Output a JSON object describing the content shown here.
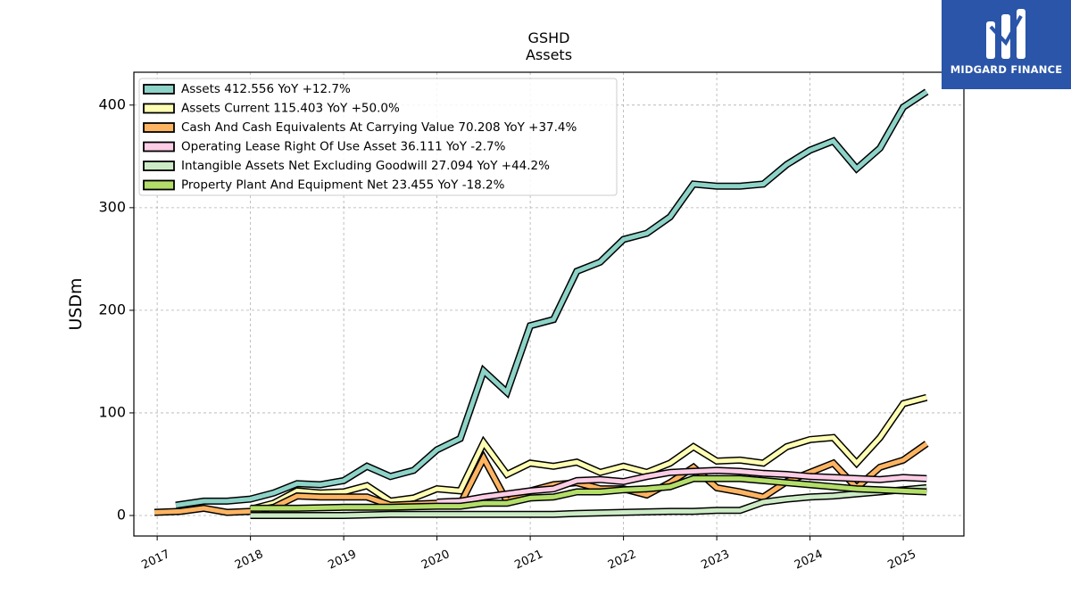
{
  "brand": {
    "name": "MIDGARD FINANCE",
    "logo_icon": "midgard-m-logo-icon",
    "bg_color": "#2a55a8"
  },
  "chart_data": {
    "type": "line",
    "title": "GSHD",
    "subtitle": "Assets",
    "ylabel": "USDm",
    "xlabel": "",
    "xlim": [
      2016.75,
      2025.65
    ],
    "ylim": [
      -20,
      432
    ],
    "yticks": [
      0,
      100,
      200,
      300,
      400
    ],
    "xticks": [
      2017,
      2018,
      2019,
      2020,
      2021,
      2022,
      2023,
      2024,
      2025
    ],
    "grid": true,
    "legend_position": "top-left",
    "series": [
      {
        "name": "Assets",
        "legend_label": "Assets  412.556 YoY +12.7%",
        "color": "#8dd3c7",
        "x": [
          2017.2,
          2017.5,
          2017.75,
          2018.0,
          2018.25,
          2018.5,
          2018.75,
          2019.0,
          2019.25,
          2019.5,
          2019.75,
          2020.0,
          2020.25,
          2020.5,
          2020.75,
          2021.0,
          2021.25,
          2021.5,
          2021.75,
          2022.0,
          2022.25,
          2022.5,
          2022.75,
          2023.0,
          2023.25,
          2023.5,
          2023.75,
          2024.0,
          2024.25,
          2024.5,
          2024.75,
          2025.0,
          2025.25
        ],
        "y": [
          10,
          14,
          14,
          16,
          22,
          31,
          30,
          34,
          48,
          38,
          44,
          64,
          75,
          141,
          120,
          185,
          191,
          238,
          247,
          269,
          275,
          291,
          323,
          321,
          321,
          323,
          342,
          356,
          365,
          338,
          358,
          398,
          413
        ]
      },
      {
        "name": "Assets Current",
        "legend_label": "Assets Current  115.403 YoY +50.0%",
        "color": "#ffffb3",
        "x": [
          2018.0,
          2018.25,
          2018.5,
          2018.75,
          2019.0,
          2019.25,
          2019.5,
          2019.75,
          2020.0,
          2020.25,
          2020.5,
          2020.75,
          2021.0,
          2021.25,
          2021.5,
          2021.75,
          2022.0,
          2022.25,
          2022.5,
          2022.75,
          2023.0,
          2023.25,
          2023.5,
          2023.75,
          2024.0,
          2024.25,
          2024.5,
          2024.75,
          2025.0,
          2025.25
        ],
        "y": [
          6,
          12,
          24,
          22,
          23,
          29,
          14,
          17,
          26,
          24,
          71,
          40,
          51,
          48,
          52,
          42,
          48,
          42,
          51,
          67,
          53,
          54,
          51,
          67,
          74,
          76,
          51,
          76,
          109,
          115
        ]
      },
      {
        "name": "Cash And Cash Equivalents At Carrying Value",
        "legend_label": "Cash And Cash Equivalents At Carrying Value  70.208 YoY +37.4%",
        "color": "#fdb462",
        "x": [
          2016.97,
          2017.25,
          2017.5,
          2017.75,
          2018.0,
          2018.25,
          2018.5,
          2018.75,
          2019.0,
          2019.25,
          2019.5,
          2019.75,
          2020.0,
          2020.25,
          2020.5,
          2020.75,
          2021.0,
          2021.25,
          2021.5,
          2021.75,
          2022.0,
          2022.25,
          2022.5,
          2022.75,
          2023.0,
          2023.25,
          2023.5,
          2023.75,
          2024.0,
          2024.25,
          2024.5,
          2024.75,
          2025.0,
          2025.25
        ],
        "y": [
          3,
          4,
          7,
          3,
          4,
          8,
          19,
          18,
          18,
          18,
          10,
          11,
          12,
          11,
          56,
          14,
          24,
          30,
          32,
          26,
          26,
          20,
          32,
          47,
          27,
          23,
          18,
          33,
          42,
          51,
          27,
          47,
          54,
          70
        ]
      },
      {
        "name": "Operating Lease Right Of Use Asset",
        "legend_label": "Operating Lease Right Of Use Asset  36.111 YoY -2.7%",
        "color": "#fccde5",
        "x": [
          2020.0,
          2020.25,
          2020.5,
          2020.75,
          2021.0,
          2021.25,
          2021.5,
          2021.75,
          2022.0,
          2022.25,
          2022.5,
          2022.75,
          2023.0,
          2023.25,
          2023.5,
          2023.75,
          2024.0,
          2024.25,
          2024.5,
          2024.75,
          2025.0,
          2025.25
        ],
        "y": [
          13,
          14,
          18,
          21,
          24,
          26,
          34,
          35,
          33,
          38,
          42,
          43,
          44,
          43,
          41,
          40,
          38,
          37,
          36,
          35,
          37,
          36
        ]
      },
      {
        "name": "Intangible Assets Net Excluding Goodwill",
        "legend_label": "Intangible Assets Net Excluding Goodwill  27.094 YoY +44.2%",
        "color": "#ccebc5",
        "x": [
          2018.0,
          2018.5,
          2019.0,
          2019.5,
          2020.0,
          2020.5,
          2021.0,
          2021.25,
          2021.5,
          2022.0,
          2022.5,
          2022.75,
          2023.0,
          2023.25,
          2023.5,
          2023.75,
          2024.0,
          2024.25,
          2024.5,
          2024.75,
          2025.0,
          2025.25
        ],
        "y": [
          0,
          0,
          0,
          1,
          1,
          1,
          1,
          1,
          2,
          3,
          4,
          4,
          5,
          5,
          13,
          16,
          18,
          19,
          21,
          23,
          25,
          27
        ]
      },
      {
        "name": "Property Plant And Equipment Net",
        "legend_label": "Property Plant And Equipment Net  23.455 YoY -18.2%",
        "color": "#b3de69",
        "x": [
          2018.0,
          2018.5,
          2019.0,
          2019.5,
          2020.0,
          2020.25,
          2020.5,
          2020.75,
          2021.0,
          2021.25,
          2021.5,
          2021.75,
          2022.0,
          2022.25,
          2022.5,
          2022.75,
          2023.0,
          2023.25,
          2023.5,
          2023.75,
          2024.0,
          2024.25,
          2024.5,
          2024.75,
          2025.0,
          2025.25
        ],
        "y": [
          7,
          7,
          8,
          8,
          9,
          9,
          12,
          12,
          17,
          18,
          23,
          23,
          25,
          26,
          28,
          36,
          36,
          36,
          34,
          32,
          30,
          28,
          26,
          25,
          24,
          23
        ]
      }
    ]
  }
}
